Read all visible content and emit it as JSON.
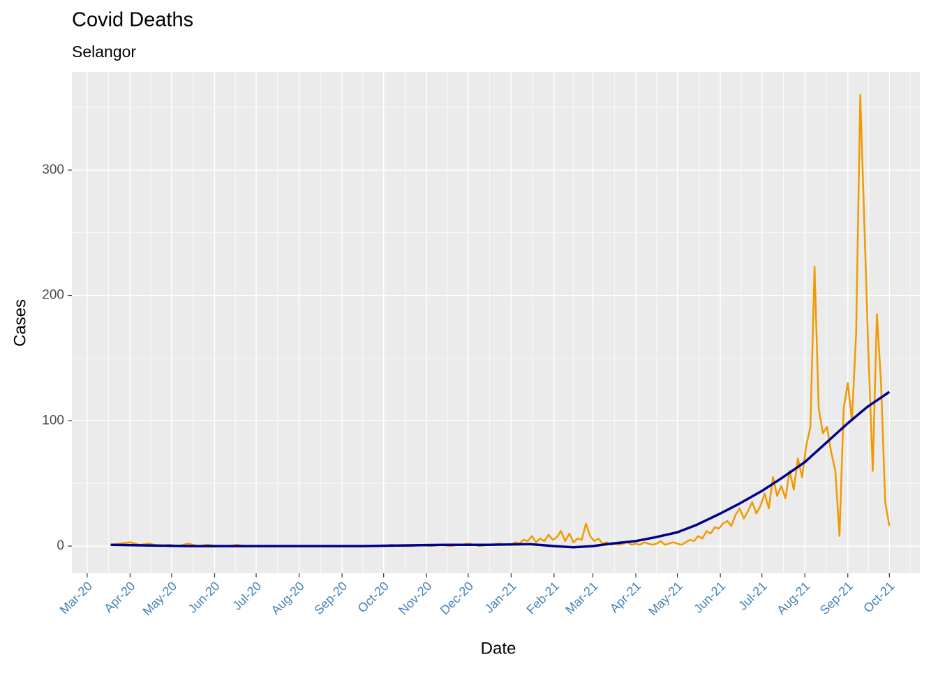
{
  "chart_data": {
    "type": "line",
    "title": "Covid Deaths",
    "subtitle": "Selangor",
    "xlabel": "Date",
    "ylabel": "Cases",
    "grid": true,
    "legend": false,
    "xlim": [
      "2020-02-19",
      "2021-10-23"
    ],
    "ylim": [
      -21.7,
      378.4
    ],
    "yticks": [
      0,
      100,
      200,
      300
    ],
    "xticks": [
      {
        "value": "2020-03-01",
        "label": "Mar-20"
      },
      {
        "value": "2020-04-01",
        "label": "Apr-20"
      },
      {
        "value": "2020-05-01",
        "label": "May-20"
      },
      {
        "value": "2020-06-01",
        "label": "Jun-20"
      },
      {
        "value": "2020-07-01",
        "label": "Jul-20"
      },
      {
        "value": "2020-08-01",
        "label": "Aug-20"
      },
      {
        "value": "2020-09-01",
        "label": "Sep-20"
      },
      {
        "value": "2020-10-01",
        "label": "Oct-20"
      },
      {
        "value": "2020-11-01",
        "label": "Nov-20"
      },
      {
        "value": "2020-12-01",
        "label": "Dec-20"
      },
      {
        "value": "2021-01-01",
        "label": "Jan-21"
      },
      {
        "value": "2021-02-01",
        "label": "Feb-21"
      },
      {
        "value": "2021-03-01",
        "label": "Mar-21"
      },
      {
        "value": "2021-04-01",
        "label": "Apr-21"
      },
      {
        "value": "2021-05-01",
        "label": "May-21"
      },
      {
        "value": "2021-06-01",
        "label": "Jun-21"
      },
      {
        "value": "2021-07-01",
        "label": "Jul-21"
      },
      {
        "value": "2021-08-01",
        "label": "Aug-21"
      },
      {
        "value": "2021-09-01",
        "label": "Sep-21"
      },
      {
        "value": "2021-10-01",
        "label": "Oct-21"
      }
    ],
    "series": [
      {
        "color": "#f09a00",
        "width": 2.5,
        "x": [
          "2020-03-18",
          "2020-03-25",
          "2020-04-01",
          "2020-04-08",
          "2020-04-15",
          "2020-04-22",
          "2020-04-29",
          "2020-05-06",
          "2020-05-13",
          "2020-05-20",
          "2020-05-27",
          "2020-06-03",
          "2020-06-10",
          "2020-06-17",
          "2020-06-24",
          "2020-07-01",
          "2020-07-08",
          "2020-07-15",
          "2020-07-22",
          "2020-07-29",
          "2020-08-05",
          "2020-08-12",
          "2020-08-19",
          "2020-08-26",
          "2020-09-02",
          "2020-09-09",
          "2020-09-16",
          "2020-09-23",
          "2020-09-30",
          "2020-10-07",
          "2020-10-14",
          "2020-10-21",
          "2020-10-28",
          "2020-11-04",
          "2020-11-11",
          "2020-11-18",
          "2020-11-25",
          "2020-12-02",
          "2020-12-09",
          "2020-12-16",
          "2020-12-23",
          "2020-12-30",
          "2021-01-01",
          "2021-01-04",
          "2021-01-07",
          "2021-01-10",
          "2021-01-13",
          "2021-01-16",
          "2021-01-19",
          "2021-01-22",
          "2021-01-25",
          "2021-01-28",
          "2021-01-31",
          "2021-02-03",
          "2021-02-06",
          "2021-02-09",
          "2021-02-12",
          "2021-02-15",
          "2021-02-18",
          "2021-02-21",
          "2021-02-24",
          "2021-02-27",
          "2021-03-02",
          "2021-03-05",
          "2021-03-08",
          "2021-03-11",
          "2021-03-14",
          "2021-03-17",
          "2021-03-20",
          "2021-03-23",
          "2021-03-26",
          "2021-03-29",
          "2021-04-01",
          "2021-04-04",
          "2021-04-07",
          "2021-04-10",
          "2021-04-13",
          "2021-04-16",
          "2021-04-19",
          "2021-04-22",
          "2021-04-25",
          "2021-04-28",
          "2021-05-01",
          "2021-05-04",
          "2021-05-07",
          "2021-05-10",
          "2021-05-13",
          "2021-05-16",
          "2021-05-19",
          "2021-05-22",
          "2021-05-25",
          "2021-05-28",
          "2021-05-31",
          "2021-06-03",
          "2021-06-06",
          "2021-06-09",
          "2021-06-12",
          "2021-06-15",
          "2021-06-18",
          "2021-06-21",
          "2021-06-24",
          "2021-06-27",
          "2021-06-30",
          "2021-07-03",
          "2021-07-06",
          "2021-07-09",
          "2021-07-12",
          "2021-07-15",
          "2021-07-18",
          "2021-07-21",
          "2021-07-24",
          "2021-07-27",
          "2021-07-30",
          "2021-08-02",
          "2021-08-05",
          "2021-08-08",
          "2021-08-11",
          "2021-08-14",
          "2021-08-17",
          "2021-08-20",
          "2021-08-23",
          "2021-08-26",
          "2021-08-29",
          "2021-09-01",
          "2021-09-04",
          "2021-09-07",
          "2021-09-10",
          "2021-09-13",
          "2021-09-16",
          "2021-09-19",
          "2021-09-22",
          "2021-09-25",
          "2021-09-28",
          "2021-10-01"
        ],
        "values": [
          1,
          2,
          3,
          1,
          2,
          0,
          1,
          0,
          2,
          0,
          1,
          0,
          0,
          1,
          0,
          0,
          0,
          0,
          0,
          0,
          0,
          0,
          0,
          0,
          0,
          0,
          0,
          0,
          0,
          1,
          0,
          0,
          1,
          0,
          1,
          0,
          1,
          2,
          0,
          1,
          2,
          1,
          1,
          3,
          2,
          5,
          4,
          8,
          3,
          6,
          4,
          9,
          5,
          7,
          12,
          4,
          10,
          3,
          6,
          5,
          18,
          8,
          4,
          6,
          2,
          3,
          1,
          2,
          1,
          2,
          3,
          1,
          2,
          1,
          3,
          2,
          1,
          2,
          4,
          1,
          2,
          3,
          2,
          1,
          3,
          5,
          4,
          8,
          6,
          12,
          10,
          15,
          14,
          18,
          20,
          16,
          25,
          30,
          22,
          28,
          35,
          26,
          32,
          42,
          30,
          55,
          40,
          48,
          38,
          60,
          45,
          70,
          55,
          80,
          95,
          223,
          110,
          90,
          95,
          75,
          60,
          8,
          110,
          130,
          100,
          170,
          360,
          255,
          150,
          60,
          185,
          130,
          35,
          16
        ]
      },
      {
        "color": "#00008b",
        "width": 3.5,
        "x": [
          "2020-03-18",
          "2020-04-15",
          "2020-05-15",
          "2020-06-15",
          "2020-07-15",
          "2020-08-15",
          "2020-09-15",
          "2020-10-15",
          "2020-11-15",
          "2020-12-15",
          "2021-01-15",
          "2021-02-01",
          "2021-02-15",
          "2021-03-01",
          "2021-03-15",
          "2021-04-01",
          "2021-04-15",
          "2021-05-01",
          "2021-05-15",
          "2021-06-01",
          "2021-06-15",
          "2021-07-01",
          "2021-07-15",
          "2021-08-01",
          "2021-08-15",
          "2021-09-01",
          "2021-09-15",
          "2021-10-01"
        ],
        "values": [
          1,
          0.5,
          0,
          0,
          0,
          0,
          0,
          0.5,
          1,
          1,
          1.5,
          0,
          -1,
          0,
          2,
          4,
          7,
          11,
          17,
          26,
          34,
          44,
          54,
          67,
          81,
          98,
          111,
          123
        ]
      }
    ]
  }
}
